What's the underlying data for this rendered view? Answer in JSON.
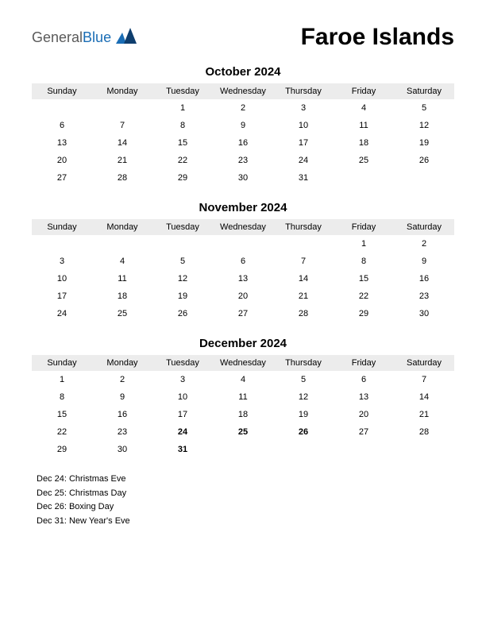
{
  "logo": {
    "general": "General",
    "blue": "Blue"
  },
  "title": "Faroe Islands",
  "day_headers": [
    "Sunday",
    "Monday",
    "Tuesday",
    "Wednesday",
    "Thursday",
    "Friday",
    "Saturday"
  ],
  "colors": {
    "header_bg": "#ececec",
    "holiday_text": "#d01616",
    "logo_gray": "#5a5a5a",
    "logo_blue": "#1a6db5",
    "background": "#ffffff"
  },
  "typography": {
    "title_fontsize": 30,
    "month_title_fontsize": 15,
    "dayheader_fontsize": 11,
    "cell_fontsize": 11,
    "holidays_fontsize": 11
  },
  "months": [
    {
      "title": "October 2024",
      "weeks": [
        [
          {
            "d": ""
          },
          {
            "d": ""
          },
          {
            "d": "1"
          },
          {
            "d": "2"
          },
          {
            "d": "3"
          },
          {
            "d": "4"
          },
          {
            "d": "5"
          }
        ],
        [
          {
            "d": "6"
          },
          {
            "d": "7"
          },
          {
            "d": "8"
          },
          {
            "d": "9"
          },
          {
            "d": "10"
          },
          {
            "d": "11"
          },
          {
            "d": "12"
          }
        ],
        [
          {
            "d": "13"
          },
          {
            "d": "14"
          },
          {
            "d": "15"
          },
          {
            "d": "16"
          },
          {
            "d": "17"
          },
          {
            "d": "18"
          },
          {
            "d": "19"
          }
        ],
        [
          {
            "d": "20"
          },
          {
            "d": "21"
          },
          {
            "d": "22"
          },
          {
            "d": "23"
          },
          {
            "d": "24"
          },
          {
            "d": "25"
          },
          {
            "d": "26"
          }
        ],
        [
          {
            "d": "27"
          },
          {
            "d": "28"
          },
          {
            "d": "29"
          },
          {
            "d": "30"
          },
          {
            "d": "31"
          },
          {
            "d": ""
          },
          {
            "d": ""
          }
        ]
      ]
    },
    {
      "title": "November 2024",
      "weeks": [
        [
          {
            "d": ""
          },
          {
            "d": ""
          },
          {
            "d": ""
          },
          {
            "d": ""
          },
          {
            "d": ""
          },
          {
            "d": "1"
          },
          {
            "d": "2"
          }
        ],
        [
          {
            "d": "3"
          },
          {
            "d": "4"
          },
          {
            "d": "5"
          },
          {
            "d": "6"
          },
          {
            "d": "7"
          },
          {
            "d": "8"
          },
          {
            "d": "9"
          }
        ],
        [
          {
            "d": "10"
          },
          {
            "d": "11"
          },
          {
            "d": "12"
          },
          {
            "d": "13"
          },
          {
            "d": "14"
          },
          {
            "d": "15"
          },
          {
            "d": "16"
          }
        ],
        [
          {
            "d": "17"
          },
          {
            "d": "18"
          },
          {
            "d": "19"
          },
          {
            "d": "20"
          },
          {
            "d": "21"
          },
          {
            "d": "22"
          },
          {
            "d": "23"
          }
        ],
        [
          {
            "d": "24"
          },
          {
            "d": "25"
          },
          {
            "d": "26"
          },
          {
            "d": "27"
          },
          {
            "d": "28"
          },
          {
            "d": "29"
          },
          {
            "d": "30"
          }
        ]
      ]
    },
    {
      "title": "December 2024",
      "weeks": [
        [
          {
            "d": "1"
          },
          {
            "d": "2"
          },
          {
            "d": "3"
          },
          {
            "d": "4"
          },
          {
            "d": "5"
          },
          {
            "d": "6"
          },
          {
            "d": "7"
          }
        ],
        [
          {
            "d": "8"
          },
          {
            "d": "9"
          },
          {
            "d": "10"
          },
          {
            "d": "11"
          },
          {
            "d": "12"
          },
          {
            "d": "13"
          },
          {
            "d": "14"
          }
        ],
        [
          {
            "d": "15"
          },
          {
            "d": "16"
          },
          {
            "d": "17"
          },
          {
            "d": "18"
          },
          {
            "d": "19"
          },
          {
            "d": "20"
          },
          {
            "d": "21"
          }
        ],
        [
          {
            "d": "22"
          },
          {
            "d": "23"
          },
          {
            "d": "24",
            "h": true
          },
          {
            "d": "25",
            "h": true
          },
          {
            "d": "26",
            "h": true
          },
          {
            "d": "27"
          },
          {
            "d": "28"
          }
        ],
        [
          {
            "d": "29"
          },
          {
            "d": "30"
          },
          {
            "d": "31",
            "h": true
          },
          {
            "d": ""
          },
          {
            "d": ""
          },
          {
            "d": ""
          },
          {
            "d": ""
          }
        ]
      ]
    }
  ],
  "holidays_list": [
    "Dec 24: Christmas Eve",
    "Dec 25: Christmas Day",
    "Dec 26: Boxing Day",
    "Dec 31: New Year's Eve"
  ]
}
